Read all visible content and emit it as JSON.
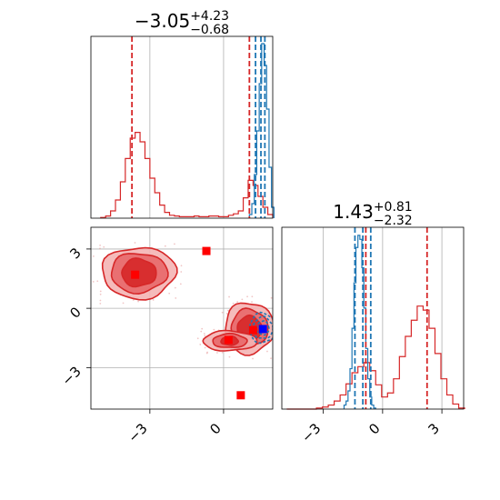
{
  "chart_data": {
    "type": "corner",
    "params": [
      {
        "title_value": "−3.05",
        "title_plus": "+4.23",
        "title_minus": "−0.68",
        "range": [
          -5.4,
          2.0
        ]
      },
      {
        "title_value": "1.43",
        "title_plus": "+0.81",
        "title_minus": "−2.32",
        "range": [
          -5.1,
          4.1
        ]
      }
    ],
    "ticks": {
      "x0": [
        {
          "v": -3,
          "label": "−3"
        },
        {
          "v": 0,
          "label": "0"
        }
      ],
      "x1": [
        {
          "v": -3,
          "label": "−3"
        },
        {
          "v": 0,
          "label": "0"
        },
        {
          "v": 3,
          "label": "3"
        }
      ],
      "y1": [
        {
          "v": 3,
          "label": "3"
        },
        {
          "v": 0,
          "label": "0"
        },
        {
          "v": -3,
          "label": "−3"
        }
      ]
    },
    "grid": true,
    "colors": {
      "posterior_a": "#d62728",
      "posterior_b": "#1f77b4",
      "marker_blue": "#0000ff"
    },
    "marginal_lines": {
      "p0": {
        "red": [
          -3.73,
          1.05
        ],
        "blue": [
          1.3,
          1.52,
          1.68
        ]
      },
      "p1": {
        "red": [
          -0.85,
          2.25
        ],
        "blue": [
          -1.4,
          -1.0,
          -0.6
        ]
      }
    },
    "marginal_hist": {
      "p0_red": {
        "x": [
          -4.9,
          -4.7,
          -4.5,
          -4.3,
          -4.1,
          -3.9,
          -3.7,
          -3.5,
          -3.3,
          -3.1,
          -2.9,
          -2.7,
          -2.5,
          -2.3,
          -2.1,
          -1.9,
          -1.7,
          -1.5,
          -1.3,
          -1.1,
          -0.9,
          -0.7,
          -0.5,
          -0.3,
          -0.1,
          0.1,
          0.3,
          0.5,
          0.7,
          0.9,
          1.1,
          1.3,
          1.5,
          1.7,
          1.9
        ],
        "y": [
          1,
          3,
          10,
          25,
          50,
          82,
          110,
          118,
          105,
          82,
          55,
          35,
          18,
          8,
          4,
          3,
          2,
          2,
          2,
          3,
          2,
          2,
          3,
          3,
          2,
          2,
          4,
          6,
          10,
          28,
          52,
          45,
          30,
          15,
          5
        ]
      },
      "p0_blue": {
        "x": [
          1.1,
          1.2,
          1.3,
          1.4,
          1.5,
          1.6,
          1.7,
          1.8,
          1.9,
          2.0
        ],
        "y": [
          5,
          20,
          60,
          120,
          185,
          240,
          210,
          150,
          70,
          15
        ]
      },
      "p1_red": {
        "x": [
          -4.7,
          -4.4,
          -4.1,
          -3.8,
          -3.5,
          -3.2,
          -2.9,
          -2.6,
          -2.3,
          -2.0,
          -1.7,
          -1.4,
          -1.1,
          -0.8,
          -0.5,
          -0.2,
          0.1,
          0.4,
          0.7,
          1.0,
          1.3,
          1.6,
          1.9,
          2.2,
          2.5,
          2.8,
          3.1,
          3.4,
          3.7,
          4.0
        ],
        "y": [
          0,
          0,
          0,
          0,
          0,
          1,
          2,
          4,
          8,
          14,
          25,
          36,
          42,
          46,
          38,
          24,
          12,
          16,
          30,
          52,
          72,
          88,
          102,
          98,
          80,
          55,
          30,
          14,
          5,
          1
        ]
      },
      "p1_blue": {
        "x": [
          -1.9,
          -1.8,
          -1.7,
          -1.6,
          -1.5,
          -1.4,
          -1.3,
          -1.2,
          -1.1,
          -1.0,
          -0.9,
          -0.8,
          -0.7,
          -0.6,
          -0.5,
          -0.4
        ],
        "y": [
          4,
          8,
          18,
          40,
          80,
          125,
          160,
          172,
          168,
          140,
          100,
          60,
          30,
          12,
          4,
          1
        ]
      }
    },
    "markers": {
      "red": [
        [
          -3.6,
          1.7
        ],
        [
          -0.7,
          2.9
        ],
        [
          0.2,
          -1.6
        ],
        [
          1.2,
          -1.1
        ],
        [
          0.7,
          -4.4
        ]
      ],
      "blue": [
        [
          1.6,
          -1.05
        ]
      ]
    },
    "contours": {
      "red_clusters": [
        {
          "cx": -3.45,
          "cy": 1.8,
          "rx": [
            1.5,
            1.15,
            0.7
          ],
          "ry": [
            1.3,
            1.0,
            0.7
          ]
        },
        {
          "cx": 1.05,
          "cy": -1.0,
          "rx": [
            1.0,
            0.75,
            0.5
          ],
          "ry": [
            1.3,
            0.95,
            0.6
          ]
        },
        {
          "cx": 0.25,
          "cy": -1.65,
          "rx": [
            1.1,
            0.7,
            0.35
          ],
          "ry": [
            0.5,
            0.35,
            0.22
          ]
        }
      ],
      "blue_cluster": {
        "cx": 1.6,
        "cy": -1.0,
        "rx": [
          0.55,
          0.4,
          0.25
        ],
        "ry": [
          0.75,
          0.55,
          0.35
        ]
      }
    }
  }
}
